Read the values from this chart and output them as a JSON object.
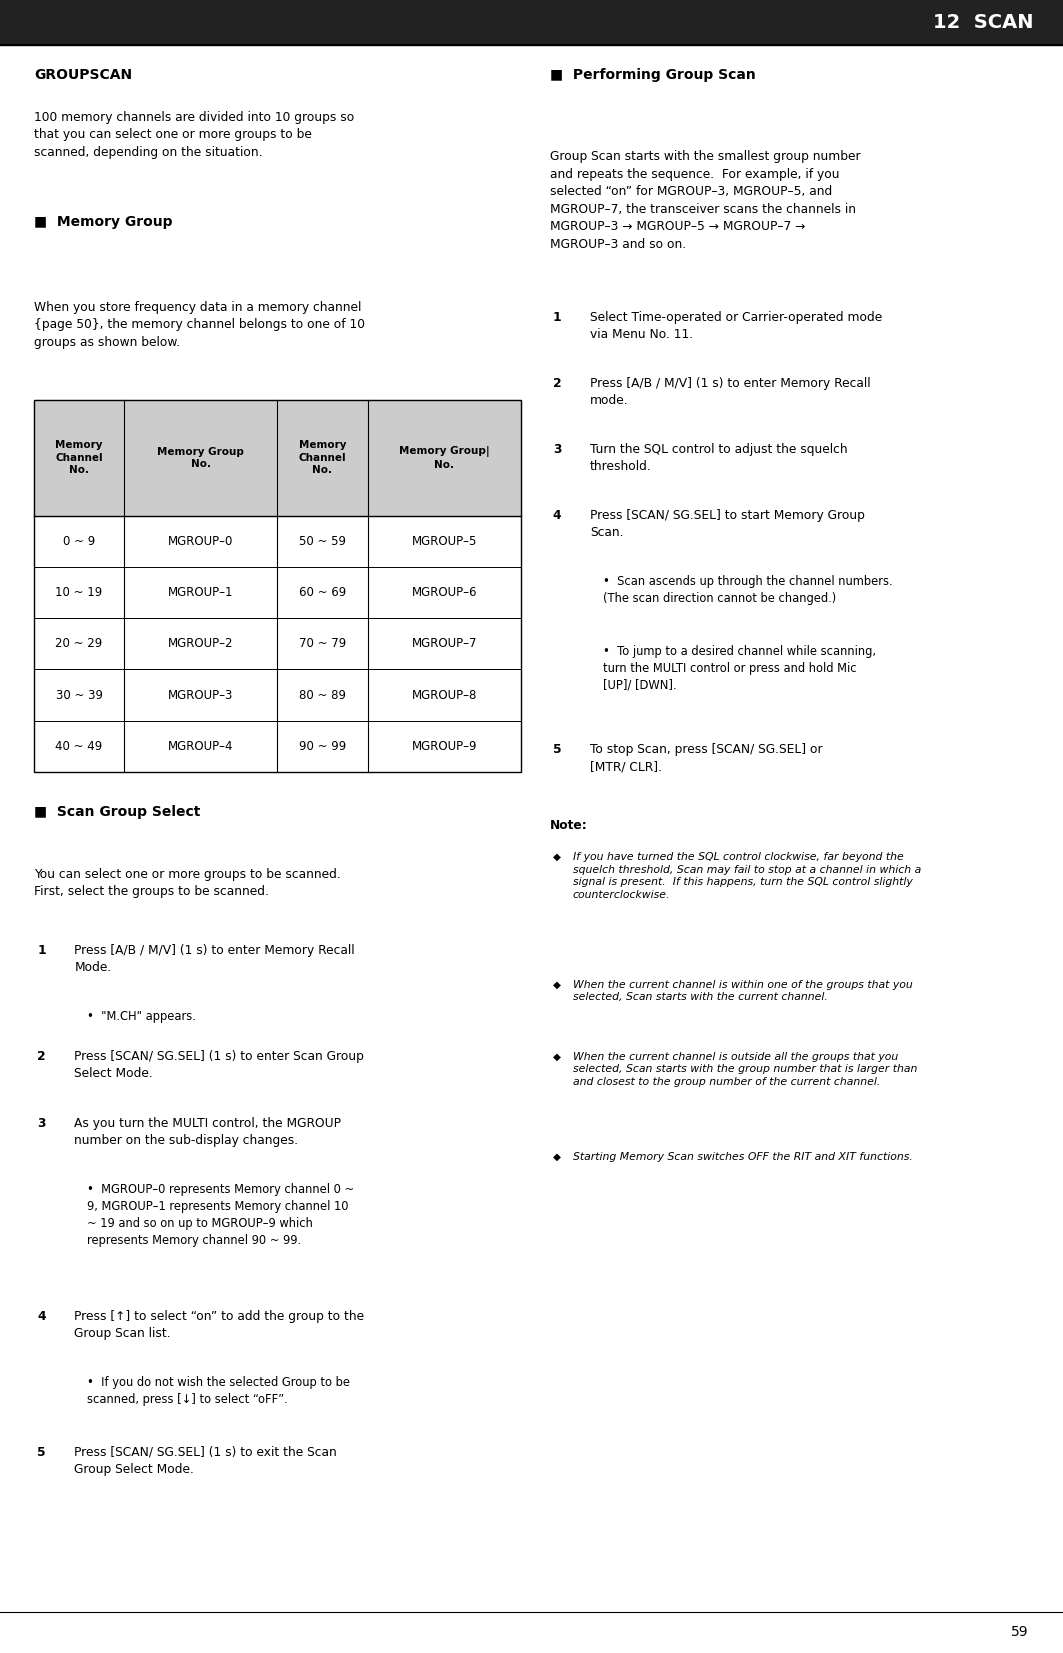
{
  "page_width": 10.63,
  "page_height": 16.53,
  "bg_color": "#ffffff",
  "header_bg": "#222222",
  "header_text": "12  SCAN",
  "header_text_color": "#ffffff",
  "section_title_left": "GROUPSCAN",
  "intro_text": "100 memory channels are divided into 10 groups so\nthat you can select one or more groups to be\nscanned, depending on the situation.",
  "memory_group_heading": "Memory Group",
  "memory_group_intro": "When you store frequency data in a memory channel\n{page 50}, the memory channel belongs to one of 10\ngroups as shown below.",
  "table_headers": [
    "Memory\nChannel\nNo.",
    "Memory Group\nNo.",
    "Memory\nChannel\nNo.",
    "Memory Group|\nNo."
  ],
  "table_data": [
    [
      "0 ~ 9",
      "MGROUP–0",
      "50 ~ 59",
      "MGROUP–5"
    ],
    [
      "10 ~ 19",
      "MGROUP–1",
      "60 ~ 69",
      "MGROUP–6"
    ],
    [
      "20 ~ 29",
      "MGROUP–2",
      "70 ~ 79",
      "MGROUP–7"
    ],
    [
      "30 ~ 39",
      "MGROUP–3",
      "80 ~ 89",
      "MGROUP–8"
    ],
    [
      "40 ~ 49",
      "MGROUP–4",
      "90 ~ 99",
      "MGROUP–9"
    ]
  ],
  "table_header_bg": "#cccccc",
  "scan_group_select_heading": "Scan Group Select",
  "scan_group_select_intro": "You can select one or more groups to be scanned.\nFirst, select the groups to be scanned.",
  "scan_group_steps": [
    {
      "num": "1",
      "text_parts": [
        {
          "text": "Press ",
          "bold": false
        },
        {
          "text": "[A/B / M/V] (1 s)",
          "bold": true
        },
        {
          "text": " to enter Memory Recall\nMode.",
          "bold": false
        }
      ],
      "bullet": "\"M.CH\" appears."
    },
    {
      "num": "2",
      "text_parts": [
        {
          "text": "Press ",
          "bold": false
        },
        {
          "text": "[SCAN/ SG.SEL] (1 s)",
          "bold": true
        },
        {
          "text": " to enter Scan Group\nSelect Mode.",
          "bold": false
        }
      ],
      "bullet": null
    },
    {
      "num": "3",
      "text_parts": [
        {
          "text": "As you turn the ",
          "bold": false
        },
        {
          "text": "MULTI",
          "bold": true
        },
        {
          "text": " control, the MGROUP\nnumber on the sub-display changes.",
          "bold": false
        }
      ],
      "bullet": "MGROUP–0 represents Memory channel 0 ~\n9, MGROUP–1 represents Memory channel 10\n~ 19 and so on up to MGROUP–9 which\nrepresents Memory channel 90 ~ 99."
    },
    {
      "num": "4",
      "text_parts": [
        {
          "text": "Press [↑] to select “on” to add the group to the\nGroup Scan list.",
          "bold": false
        }
      ],
      "bullet": "If you do not wish the selected Group to be\nscanned, press [↓] to select “oFF”."
    },
    {
      "num": "5",
      "text_parts": [
        {
          "text": "Press ",
          "bold": false
        },
        {
          "text": "[SCAN/ SG.SEL] (1 s)",
          "bold": true
        },
        {
          "text": " to exit the Scan\nGroup Select Mode.",
          "bold": false
        }
      ],
      "bullet": null
    }
  ],
  "performing_group_scan_heading": "Performing Group Scan",
  "performing_intro": "Group Scan starts with the smallest group number\nand repeats the sequence.  For example, if you\nselected “on” for MGROUP–3, MGROUP–5, and\nMGROUP–7, the transceiver scans the channels in\nMGROUP–3 → MGROUP–5 → MGROUP–7 →\nMGROUP–3 and so on.",
  "performing_steps": [
    {
      "num": "1",
      "text_parts": [
        {
          "text": "Select Time-operated or Carrier-operated mode\nvia Menu No. 11.",
          "bold": false
        }
      ],
      "bullets": []
    },
    {
      "num": "2",
      "text_parts": [
        {
          "text": "Press ",
          "bold": false
        },
        {
          "text": "[A/B / M/V] (1 s)",
          "bold": true
        },
        {
          "text": " to enter Memory Recall\nmode.",
          "bold": false
        }
      ],
      "bullets": []
    },
    {
      "num": "3",
      "text_parts": [
        {
          "text": "Turn the ",
          "bold": false
        },
        {
          "text": "SQL",
          "bold": true
        },
        {
          "text": " control to adjust the squelch\nthreshold.",
          "bold": false
        }
      ],
      "bullets": []
    },
    {
      "num": "4",
      "text_parts": [
        {
          "text": "Press ",
          "bold": false
        },
        {
          "text": "[SCAN/ SG.SEL]",
          "bold": true
        },
        {
          "text": " to start Memory Group\nScan.",
          "bold": false
        }
      ],
      "bullets": [
        "Scan ascends up through the channel numbers.\n(The scan direction cannot be changed.)",
        "To jump to a desired channel while scanning,\nturn the MULTI control or press and hold Mic\n[UP]/ [DWN]."
      ]
    },
    {
      "num": "5",
      "text_parts": [
        {
          "text": "To stop Scan, press ",
          "bold": false
        },
        {
          "text": "[SCAN/ SG.SEL]",
          "bold": true
        },
        {
          "text": " or\n",
          "bold": false
        },
        {
          "text": "[MTR/ CLR]",
          "bold": true
        },
        {
          "text": ".",
          "bold": false
        }
      ],
      "bullets": []
    }
  ],
  "note_heading": "Note:",
  "notes": [
    "If you have turned the SQL control clockwise, far beyond the\nsquelch threshold, Scan may fail to stop at a channel in which a\nsignal is present.  If this happens, turn the SQL control slightly\ncounterclockwise.",
    "When the current channel is within one of the groups that you\nselected, Scan starts with the current channel.",
    "When the current channel is outside all the groups that you\nselected, Scan starts with the group number that is larger than\nand closest to the group number of the current channel.",
    "Starting Memory Scan switches OFF the RIT and XIT functions."
  ],
  "page_number": "59"
}
